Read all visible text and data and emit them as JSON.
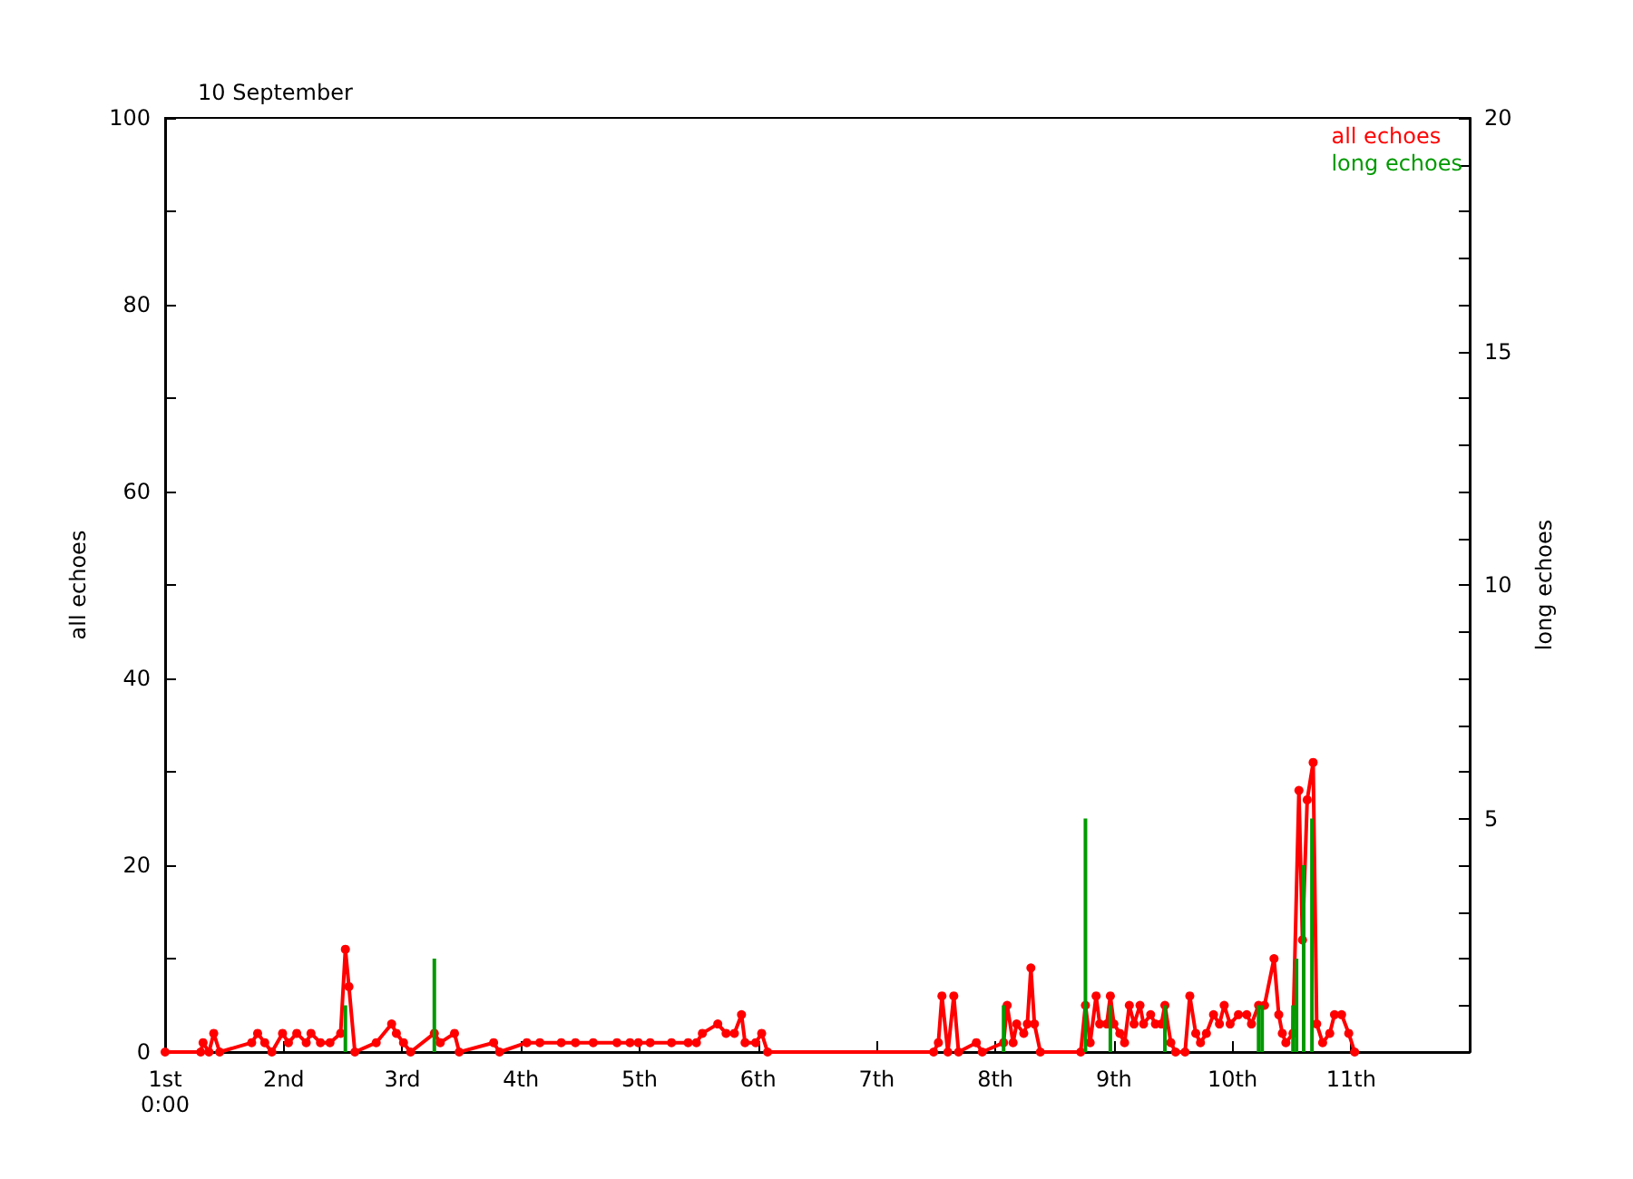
{
  "chart_data": {
    "type": "line",
    "title": "10 September",
    "ylabel": "all echoes",
    "y2label": "long echoes",
    "xlim": [
      1,
      12
    ],
    "xticks": [
      {
        "value": 1,
        "label": "1st\n0:00"
      },
      {
        "value": 2,
        "label": "2nd"
      },
      {
        "value": 3,
        "label": "3rd"
      },
      {
        "value": 4,
        "label": "4th"
      },
      {
        "value": 5,
        "label": "5th"
      },
      {
        "value": 6,
        "label": "6th"
      },
      {
        "value": 7,
        "label": "7th"
      },
      {
        "value": 8,
        "label": "8th"
      },
      {
        "value": 9,
        "label": "9th"
      },
      {
        "value": 10,
        "label": "10th"
      },
      {
        "value": 11,
        "label": "11th"
      }
    ],
    "ylim": [
      0,
      100
    ],
    "yticks": [
      0,
      {
        "value": 10,
        "label": null
      },
      20,
      {
        "value": 30,
        "label": null
      },
      40,
      {
        "value": 50,
        "label": null
      },
      60,
      {
        "value": 70,
        "label": null
      },
      80,
      {
        "value": 90,
        "label": null
      },
      100
    ],
    "y2lim": [
      0,
      20
    ],
    "y2ticks": [
      {
        "value": 0,
        "label": null
      },
      {
        "value": 1,
        "label": null
      },
      {
        "value": 2,
        "label": null
      },
      {
        "value": 3,
        "label": null
      },
      {
        "value": 4,
        "label": null
      },
      5,
      {
        "value": 6,
        "label": null
      },
      {
        "value": 7,
        "label": null
      },
      {
        "value": 8,
        "label": null
      },
      {
        "value": 9,
        "label": null
      },
      10,
      {
        "value": 11,
        "label": null
      },
      {
        "value": 12,
        "label": null
      },
      {
        "value": 13,
        "label": null
      },
      {
        "value": 14,
        "label": null
      },
      15,
      {
        "value": 16,
        "label": null
      },
      {
        "value": 17,
        "label": null
      },
      {
        "value": 18,
        "label": null
      },
      {
        "value": 19,
        "label": null
      },
      20
    ],
    "grid": false,
    "legend": "top right",
    "marker": "circle",
    "line_style": "solid",
    "series": [
      {
        "name": "all echoes",
        "color": "#ff0000",
        "x": [
          1.0,
          1.3,
          1.32,
          1.37,
          1.41,
          1.46,
          1.73,
          1.78,
          1.84,
          1.9,
          1.99,
          2.04,
          2.11,
          2.19,
          2.23,
          2.31,
          2.39,
          2.48,
          2.52,
          2.55,
          2.6,
          2.78,
          2.91,
          2.95,
          3.01,
          3.07,
          3.27,
          3.32,
          3.44,
          3.48,
          3.77,
          3.82,
          4.05,
          4.16,
          4.34,
          4.46,
          4.61,
          4.81,
          4.92,
          4.99,
          5.09,
          5.27,
          5.41,
          5.48,
          5.53,
          5.66,
          5.73,
          5.8,
          5.86,
          5.89,
          5.98,
          6.03,
          6.08,
          7.48,
          7.52,
          7.55,
          7.6,
          7.65,
          7.69,
          7.84,
          7.89,
          8.07,
          8.1,
          8.15,
          8.18,
          8.24,
          8.27,
          8.3,
          8.33,
          8.38,
          8.72,
          8.76,
          8.8,
          8.85,
          8.88,
          8.94,
          8.97,
          9.0,
          9.05,
          9.09,
          9.13,
          9.17,
          9.22,
          9.25,
          9.31,
          9.35,
          9.4,
          9.43,
          9.48,
          9.52,
          9.6,
          9.64,
          9.69,
          9.73,
          9.78,
          9.84,
          9.89,
          9.93,
          9.98,
          10.05,
          10.12,
          10.16,
          10.22,
          10.27,
          10.35,
          10.39,
          10.42,
          10.45,
          10.51,
          10.56,
          10.59,
          10.63,
          10.68,
          10.71,
          10.76,
          10.82,
          10.86,
          10.92,
          10.98,
          11.03
        ],
        "values": [
          0,
          0,
          1,
          0,
          2,
          0,
          1,
          2,
          1,
          0,
          2,
          1,
          2,
          1,
          2,
          1,
          1,
          2,
          11,
          7,
          0,
          1,
          3,
          2,
          1,
          0,
          2,
          1,
          2,
          0,
          1,
          0,
          1,
          1,
          1,
          1,
          1,
          1,
          1,
          1,
          1,
          1,
          1,
          1,
          2,
          3,
          2,
          2,
          4,
          1,
          1,
          2,
          0,
          0,
          1,
          6,
          0,
          6,
          0,
          1,
          0,
          1,
          5,
          1,
          3,
          2,
          3,
          9,
          3,
          0,
          0,
          5,
          1,
          6,
          3,
          3,
          6,
          3,
          2,
          1,
          5,
          3,
          5,
          3,
          4,
          3,
          3,
          5,
          1,
          0,
          0,
          6,
          2,
          1,
          2,
          4,
          3,
          5,
          3,
          4,
          4,
          3,
          5,
          5,
          10,
          4,
          2,
          1,
          2,
          28,
          12,
          27,
          31,
          3,
          1,
          2,
          4,
          4,
          2,
          0
        ]
      },
      {
        "name": "long echoes",
        "type": "bar",
        "axis": "y2",
        "color": "#009900",
        "x": [
          2.52,
          3.27,
          8.07,
          8.76,
          8.97,
          9.43,
          10.22,
          10.25,
          10.51,
          10.54,
          10.6,
          10.67
        ],
        "values": [
          1,
          2,
          1,
          5,
          1,
          1,
          1,
          1,
          1,
          2,
          4,
          5
        ]
      }
    ]
  }
}
